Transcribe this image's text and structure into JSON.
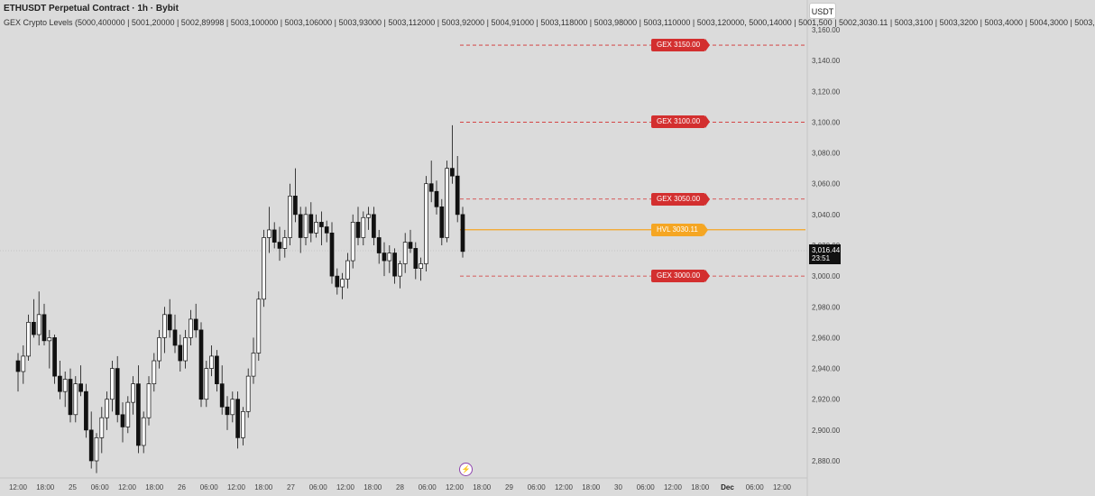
{
  "header": {
    "title": "ETHUSDT Perpetual Contract · 1h · Bybit",
    "indicator": "GEX Crypto Levels (5000,400000 | 5001,20000 | 5002,89998 | 5003,100000 | 5003,106000 | 5003,93000 | 5003,112000 | 5003,92000 | 5004,91000 | 5003,118000 | 5003,98000 | 5003,110000 | 5003,120000, 5000,14000 | 5001,500 | 5002,3030.11 | 5003,3100 | 5003,3200 | 5003,4000 | 5004,3000 | 5003,"
  },
  "currency_button": "USDT",
  "price_axis": {
    "ticks": [
      "3,160.00",
      "3,140.00",
      "3,120.00",
      "3,100.00",
      "3,080.00",
      "3,060.00",
      "3,040.00",
      "3,020.00",
      "3,000.00",
      "2,980.00",
      "2,960.00",
      "2,940.00",
      "2,920.00",
      "2,900.00",
      "2,880.00"
    ],
    "current_price": "3,016.44",
    "countdown": "23:51"
  },
  "time_axis": {
    "ticks": [
      "12:00",
      "18:00",
      "25",
      "06:00",
      "12:00",
      "18:00",
      "26",
      "06:00",
      "12:00",
      "18:00",
      "27",
      "06:00",
      "12:00",
      "18:00",
      "28",
      "06:00",
      "12:00",
      "18:00",
      "29",
      "06:00",
      "12:00",
      "18:00",
      "30",
      "06:00",
      "12:00",
      "18:00",
      "Dec",
      "06:00",
      "12:00"
    ]
  },
  "levels": [
    {
      "label": "GEX 3150.00",
      "price": 3150,
      "color": "#d32f2f",
      "style": "dashed"
    },
    {
      "label": "GEX 3100.00",
      "price": 3100,
      "color": "#d32f2f",
      "style": "dashed"
    },
    {
      "label": "GEX 3050.00",
      "price": 3050,
      "color": "#d32f2f",
      "style": "dashed"
    },
    {
      "label": "HVL 3030.11",
      "price": 3030.11,
      "color": "#f5a623",
      "style": "solid"
    },
    {
      "label": "GEX 3000.00",
      "price": 3000,
      "color": "#d32f2f",
      "style": "dashed"
    }
  ],
  "chart_data": {
    "type": "candlestick",
    "symbol": "ETHUSDT",
    "interval": "1h",
    "ylim": [
      2873,
      3166
    ],
    "candles": [
      [
        2945,
        2950,
        2925,
        2938
      ],
      [
        2938,
        2955,
        2930,
        2948
      ],
      [
        2948,
        2975,
        2945,
        2970
      ],
      [
        2970,
        2985,
        2960,
        2962
      ],
      [
        2962,
        2990,
        2955,
        2975
      ],
      [
        2975,
        2982,
        2955,
        2958
      ],
      [
        2958,
        2965,
        2940,
        2960
      ],
      [
        2960,
        2962,
        2930,
        2935
      ],
      [
        2935,
        2945,
        2920,
        2925
      ],
      [
        2925,
        2938,
        2915,
        2933
      ],
      [
        2933,
        2940,
        2905,
        2910
      ],
      [
        2910,
        2935,
        2905,
        2930
      ],
      [
        2930,
        2942,
        2922,
        2925
      ],
      [
        2925,
        2930,
        2895,
        2900
      ],
      [
        2900,
        2912,
        2875,
        2880
      ],
      [
        2880,
        2898,
        2872,
        2895
      ],
      [
        2895,
        2915,
        2885,
        2908
      ],
      [
        2908,
        2925,
        2900,
        2920
      ],
      [
        2920,
        2945,
        2912,
        2940
      ],
      [
        2940,
        2948,
        2905,
        2910
      ],
      [
        2910,
        2918,
        2892,
        2902
      ],
      [
        2902,
        2922,
        2898,
        2918
      ],
      [
        2918,
        2935,
        2910,
        2930
      ],
      [
        2930,
        2942,
        2885,
        2890
      ],
      [
        2890,
        2912,
        2885,
        2908
      ],
      [
        2908,
        2935,
        2903,
        2930
      ],
      [
        2930,
        2950,
        2925,
        2945
      ],
      [
        2945,
        2965,
        2940,
        2960
      ],
      [
        2960,
        2980,
        2950,
        2975
      ],
      [
        2975,
        2985,
        2960,
        2965
      ],
      [
        2965,
        2975,
        2950,
        2955
      ],
      [
        2955,
        2962,
        2938,
        2945
      ],
      [
        2945,
        2965,
        2940,
        2960
      ],
      [
        2960,
        2978,
        2955,
        2972
      ],
      [
        2972,
        2982,
        2960,
        2965
      ],
      [
        2965,
        2970,
        2915,
        2920
      ],
      [
        2920,
        2945,
        2915,
        2940
      ],
      [
        2940,
        2955,
        2935,
        2948
      ],
      [
        2948,
        2952,
        2925,
        2930
      ],
      [
        2930,
        2942,
        2910,
        2915
      ],
      [
        2915,
        2922,
        2900,
        2910
      ],
      [
        2910,
        2925,
        2905,
        2920
      ],
      [
        2920,
        2925,
        2888,
        2895
      ],
      [
        2895,
        2915,
        2890,
        2912
      ],
      [
        2912,
        2940,
        2908,
        2935
      ],
      [
        2935,
        2960,
        2930,
        2950
      ],
      [
        2950,
        2990,
        2945,
        2985
      ],
      [
        2985,
        3030,
        2980,
        3025
      ],
      [
        3025,
        3045,
        3015,
        3030
      ],
      [
        3030,
        3035,
        3018,
        3022
      ],
      [
        3022,
        3032,
        3010,
        3018
      ],
      [
        3018,
        3030,
        3012,
        3025
      ],
      [
        3025,
        3060,
        3020,
        3052
      ],
      [
        3052,
        3070,
        3035,
        3040
      ],
      [
        3040,
        3045,
        3015,
        3025
      ],
      [
        3025,
        3045,
        3020,
        3040
      ],
      [
        3040,
        3048,
        3022,
        3028
      ],
      [
        3028,
        3040,
        3025,
        3035
      ],
      [
        3035,
        3042,
        3020,
        3032
      ],
      [
        3032,
        3036,
        3022,
        3028
      ],
      [
        3028,
        3035,
        2995,
        3000
      ],
      [
        3000,
        3005,
        2988,
        2993
      ],
      [
        2993,
        3002,
        2985,
        2998
      ],
      [
        2998,
        3015,
        2992,
        3010
      ],
      [
        3010,
        3040,
        3005,
        3035
      ],
      [
        3035,
        3045,
        3020,
        3025
      ],
      [
        3025,
        3042,
        3020,
        3038
      ],
      [
        3038,
        3045,
        3030,
        3040
      ],
      [
        3040,
        3045,
        3020,
        3025
      ],
      [
        3025,
        3030,
        3008,
        3015
      ],
      [
        3015,
        3022,
        3000,
        3010
      ],
      [
        3010,
        3020,
        3002,
        3015
      ],
      [
        3015,
        3018,
        2995,
        3000
      ],
      [
        3000,
        3010,
        2992,
        3008
      ],
      [
        3008,
        3028,
        3002,
        3022
      ],
      [
        3022,
        3030,
        3015,
        3018
      ],
      [
        3018,
        3022,
        2998,
        3005
      ],
      [
        3005,
        3012,
        2997,
        3008
      ],
      [
        3008,
        3065,
        3003,
        3060
      ],
      [
        3060,
        3075,
        3048,
        3055
      ],
      [
        3055,
        3062,
        3040,
        3045
      ],
      [
        3045,
        3050,
        3020,
        3025
      ],
      [
        3025,
        3075,
        3022,
        3070
      ],
      [
        3070,
        3098,
        3060,
        3065
      ],
      [
        3065,
        3078,
        3035,
        3040
      ],
      [
        3040,
        3045,
        3012,
        3016
      ]
    ]
  }
}
